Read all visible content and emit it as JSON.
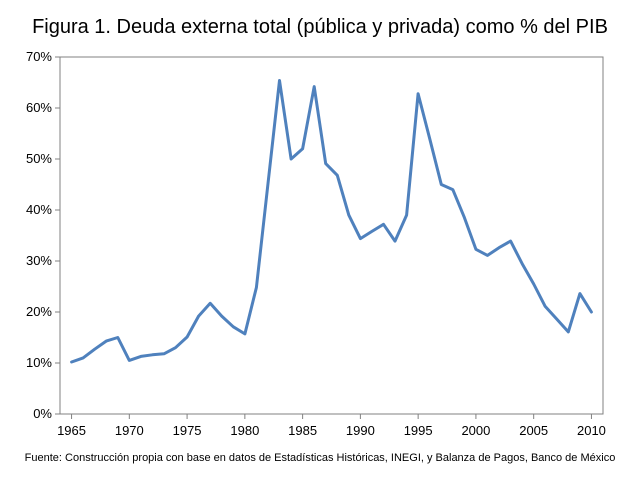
{
  "chart_data": {
    "type": "line",
    "title": "Figura 1. Deuda externa total (pública y privada) como % del PIB",
    "source": "Fuente: Construcción propia con base en datos de Estadísticas Históricas, INEGI, y Balanza de Pagos, Banco de México",
    "xlim": [
      1964,
      2011
    ],
    "ylim": [
      0,
      70
    ],
    "x_ticks": [
      1965,
      1970,
      1975,
      1980,
      1985,
      1990,
      1995,
      2000,
      2005,
      2010
    ],
    "y_ticks": [
      "0%",
      "10%",
      "20%",
      "30%",
      "40%",
      "50%",
      "60%",
      "70%"
    ],
    "y_tick_values": [
      0,
      10,
      20,
      30,
      40,
      50,
      60,
      70
    ],
    "grid": false,
    "legend": "none",
    "series_color": "#4f81bd",
    "series": [
      {
        "x": [
          1965,
          1966,
          1967,
          1968,
          1969,
          1970,
          1971,
          1972,
          1973,
          1974,
          1975,
          1976,
          1977,
          1978,
          1979,
          1980,
          1981,
          1982,
          1983,
          1984,
          1985,
          1986,
          1987,
          1988,
          1989,
          1990,
          1991,
          1992,
          1993,
          1994,
          1995,
          1996,
          1997,
          1998,
          1999,
          2000,
          2001,
          2002,
          2003,
          2004,
          2005,
          2006,
          2007,
          2008,
          2009,
          2010
        ],
        "values": [
          10.2,
          11.0,
          12.7,
          14.3,
          15.0,
          10.5,
          11.3,
          11.6,
          11.8,
          13.0,
          15.1,
          19.2,
          21.7,
          19.2,
          17.1,
          15.7,
          24.8,
          45.2,
          65.4,
          50.0,
          52.0,
          64.2,
          49.1,
          46.8,
          39.0,
          34.4,
          35.8,
          37.2,
          33.9,
          39.0,
          62.8,
          54.0,
          45.0,
          44.0,
          38.5,
          32.3,
          31.1,
          32.6,
          33.9,
          29.5,
          25.5,
          21.1,
          18.6,
          16.1,
          23.6,
          20.0
        ]
      }
    ]
  }
}
